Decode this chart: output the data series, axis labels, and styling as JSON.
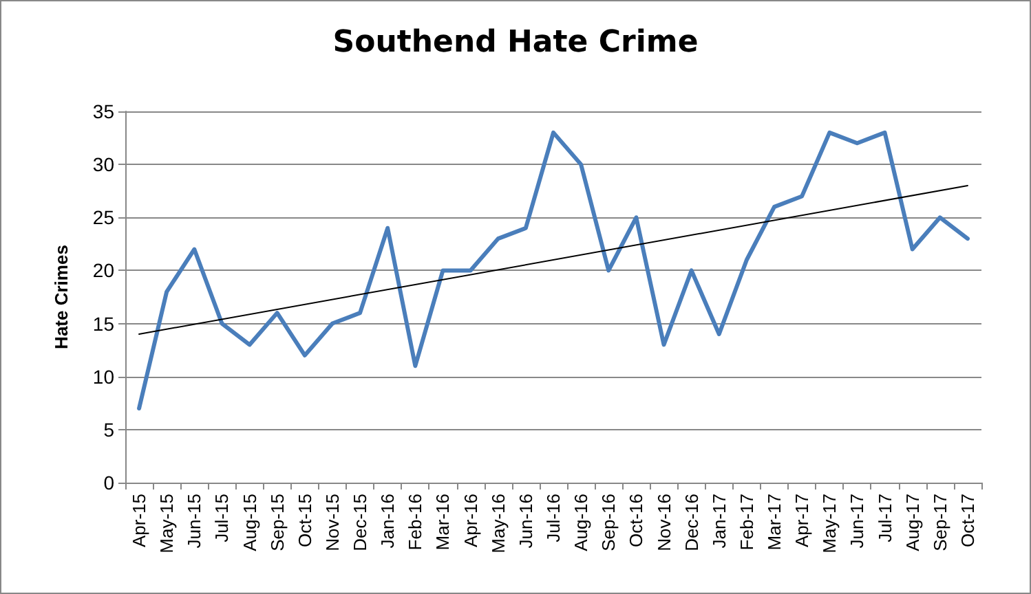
{
  "chart_data": {
    "type": "line",
    "title": "Southend Hate Crime",
    "ylabel": "Hate Crimes",
    "categories": [
      "Apr-15",
      "May-15",
      "Jun-15",
      "Jul-15",
      "Aug-15",
      "Sep-15",
      "Oct-15",
      "Nov-15",
      "Dec-15",
      "Jan-16",
      "Feb-16",
      "Mar-16",
      "Apr-16",
      "May-16",
      "Jun-16",
      "Jul-16",
      "Aug-16",
      "Sep-16",
      "Oct-16",
      "Nov-16",
      "Dec-16",
      "Jan-17",
      "Feb-17",
      "Mar-17",
      "Apr-17",
      "May-17",
      "Jun-17",
      "Jul-17",
      "Aug-17",
      "Sep-17",
      "Oct-17"
    ],
    "series": [
      {
        "color": "#4a7ebb",
        "values": [
          7,
          18,
          22,
          15,
          13,
          16,
          12,
          15,
          16,
          24,
          11,
          20,
          20,
          23,
          24,
          33,
          30,
          20,
          25,
          13,
          20,
          14,
          21,
          26,
          27,
          33,
          32,
          33,
          22,
          25,
          23
        ]
      },
      {
        "type": "line",
        "color": "#000000",
        "x": [
          "Apr-15",
          "Oct-17"
        ],
        "values": [
          14,
          28
        ]
      }
    ],
    "ylim": [
      0,
      35
    ],
    "yticks": [
      0,
      5,
      10,
      15,
      20,
      25,
      30,
      35
    ],
    "grid": "y",
    "marker": "none",
    "line_style": "solid"
  }
}
